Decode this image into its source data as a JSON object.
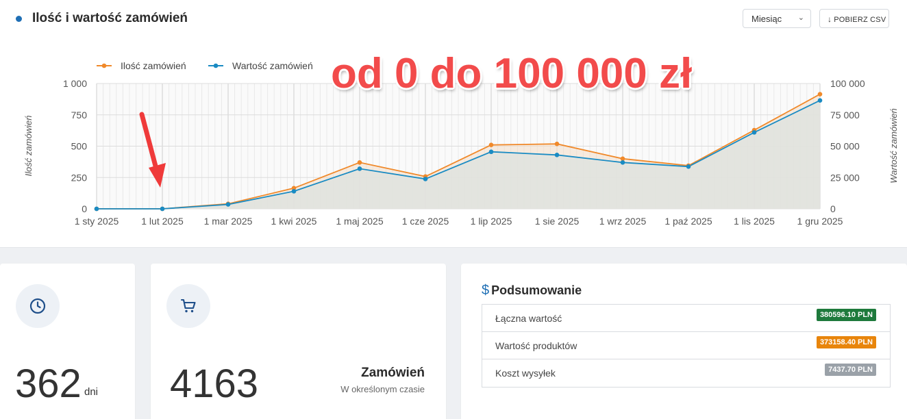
{
  "header": {
    "title": "Ilość i wartość zamówień",
    "period_select": "Miesiąc",
    "csv_button": "POBIERZ CSV"
  },
  "overlay": {
    "text": "od 0 do 100 000 zł"
  },
  "chart_data": {
    "type": "line",
    "x": [
      "1 sty 2025",
      "1 lut 2025",
      "1 mar 2025",
      "1 kwi 2025",
      "1 maj 2025",
      "1 cze 2025",
      "1 lip 2025",
      "1 sie 2025",
      "1 wrz 2025",
      "1 paź 2025",
      "1 lis 2025",
      "1 gru 2025"
    ],
    "x_tick_labels": [
      "1 sty 2025",
      "1 lut 2025",
      "1 mar 2025",
      "1 kwi 2025",
      "1 maj 2025",
      "1 cze 2025",
      "1 lip 2025",
      "1 sie 2025",
      "1 wrz 2025",
      "1 paź 2025",
      "1 lis 2025",
      "1 gru 2025"
    ],
    "series": [
      {
        "name": "Ilość zamówień",
        "axis": "left",
        "color": "#f0892a",
        "values": [
          0,
          0,
          40,
          165,
          370,
          258,
          510,
          518,
          400,
          345,
          628,
          915
        ]
      },
      {
        "name": "Wartość zamówień",
        "axis": "right",
        "color": "#1a8bc3",
        "values": [
          0,
          0,
          3500,
          14000,
          32000,
          23800,
          45500,
          43000,
          37000,
          33700,
          61000,
          86500
        ]
      }
    ],
    "ylabel": "Ilość zamówień",
    "ylabel_right": "Wartość zamówień",
    "ylim": [
      0,
      1000
    ],
    "ylim_right": [
      0,
      100000
    ],
    "y_tick_labels": [
      "0",
      "250",
      "500",
      "750",
      "1 000"
    ],
    "y_tick_labels_right": [
      "0",
      "25 000",
      "50 000",
      "75 000",
      "100 000"
    ],
    "grid": true,
    "legend": "top-left"
  },
  "stats": {
    "days_value": "362",
    "days_unit": "dni",
    "orders_value": "4163",
    "orders_label": "Zamówień",
    "orders_sub": "W określonym czasie"
  },
  "summary": {
    "title": "Podsumowanie",
    "rows": [
      {
        "label": "Łączna wartość",
        "value": "380596.10 PLN",
        "color": "#1e7a3c"
      },
      {
        "label": "Wartość produktów",
        "value": "373158.40 PLN",
        "color": "#e8850c"
      },
      {
        "label": "Koszt wysyłek",
        "value": "7437.70 PLN",
        "color": "#9aa1a8"
      }
    ]
  }
}
